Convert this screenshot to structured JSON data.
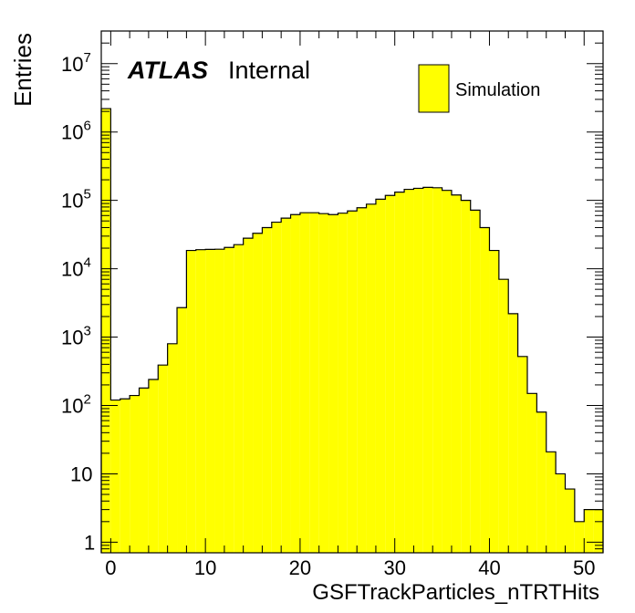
{
  "chart_data": {
    "type": "bar",
    "style": "histogram",
    "xlabel": "GSFTrackParticles_nTRTHits",
    "ylabel": "Entries",
    "yscale": "log",
    "xlim": [
      -1,
      52
    ],
    "ylim": [
      0.7,
      30000000
    ],
    "x_ticks": [
      "0",
      "10",
      "20",
      "30",
      "40",
      "50"
    ],
    "y_ticks": [
      {
        "base": "1",
        "exp": ""
      },
      {
        "base": "10",
        "exp": ""
      },
      {
        "base": "10",
        "exp": "2"
      },
      {
        "base": "10",
        "exp": "3"
      },
      {
        "base": "10",
        "exp": "4"
      },
      {
        "base": "10",
        "exp": "5"
      },
      {
        "base": "10",
        "exp": "6"
      },
      {
        "base": "10",
        "exp": "7"
      }
    ],
    "fill_color": "#ffff00",
    "line_color": "#000000",
    "grid": false,
    "legend_position": "top-right",
    "series": [
      {
        "name": "Simulation",
        "bin_edges": [
          -1,
          0,
          1,
          2,
          3,
          4,
          5,
          6,
          7,
          8,
          9,
          10,
          11,
          12,
          13,
          14,
          15,
          16,
          17,
          18,
          19,
          20,
          21,
          22,
          23,
          24,
          25,
          26,
          27,
          28,
          29,
          30,
          31,
          32,
          33,
          34,
          35,
          36,
          37,
          38,
          39,
          40,
          41,
          42,
          43,
          44,
          45,
          46,
          47,
          48,
          49,
          50,
          51,
          52
        ],
        "values": [
          2200000,
          120,
          125,
          140,
          180,
          240,
          390,
          800,
          2700,
          18500,
          19000,
          19200,
          19300,
          20500,
          22500,
          28000,
          33000,
          40000,
          48000,
          55000,
          62000,
          66000,
          66000,
          64000,
          62000,
          65000,
          70000,
          78000,
          88000,
          104000,
          118000,
          132000,
          145000,
          150000,
          155000,
          153000,
          140000,
          120000,
          100000,
          72000,
          40000,
          18500,
          7000,
          2200,
          520,
          150,
          80,
          21,
          10,
          6,
          2,
          3,
          3
        ]
      }
    ]
  },
  "labels": {
    "atlas": "ATLAS",
    "internal": "Internal"
  }
}
